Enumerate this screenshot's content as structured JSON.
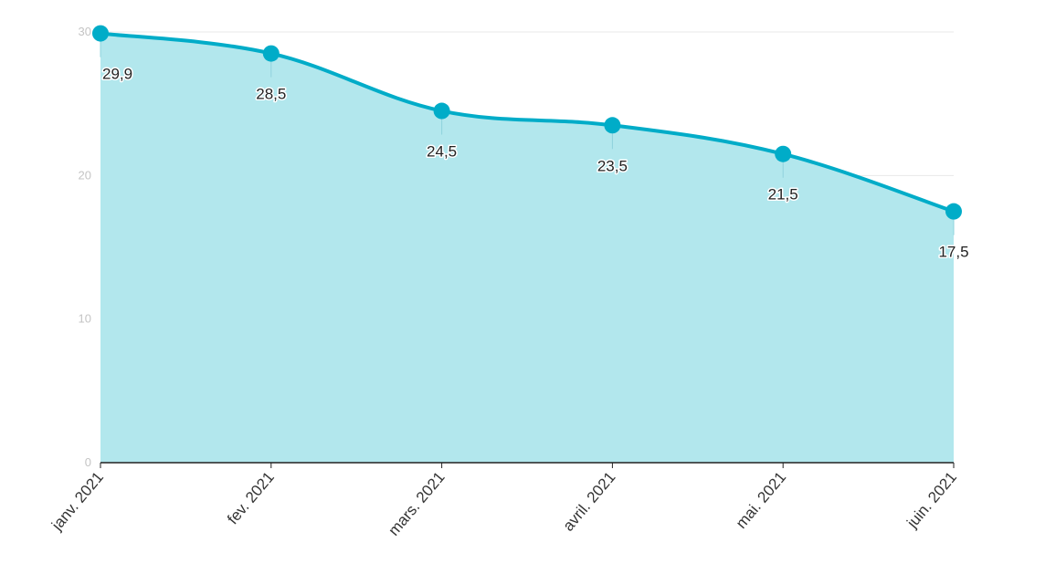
{
  "chart_data": {
    "type": "area",
    "categories": [
      "janv. 2021",
      "fev. 2021",
      "mars. 2021",
      "avril. 2021",
      "mai. 2021",
      "juin. 2021"
    ],
    "series": [
      {
        "values": [
          29.9,
          28.5,
          24.5,
          23.5,
          21.5,
          17.5
        ]
      }
    ],
    "data_labels": [
      "29,9",
      "28,5",
      "24,5",
      "23,5",
      "21,5",
      "17,5"
    ],
    "y_ticks": [
      0,
      10,
      20,
      30
    ],
    "y_tick_labels": [
      "0",
      "10",
      "20",
      "30"
    ],
    "ylim": [
      0,
      30
    ],
    "grid": true,
    "legend": "none",
    "colors": {
      "line": "#00acc8",
      "fill": "#b2e7ed",
      "grid": "#e8e8e8",
      "axis": "#222222"
    }
  }
}
